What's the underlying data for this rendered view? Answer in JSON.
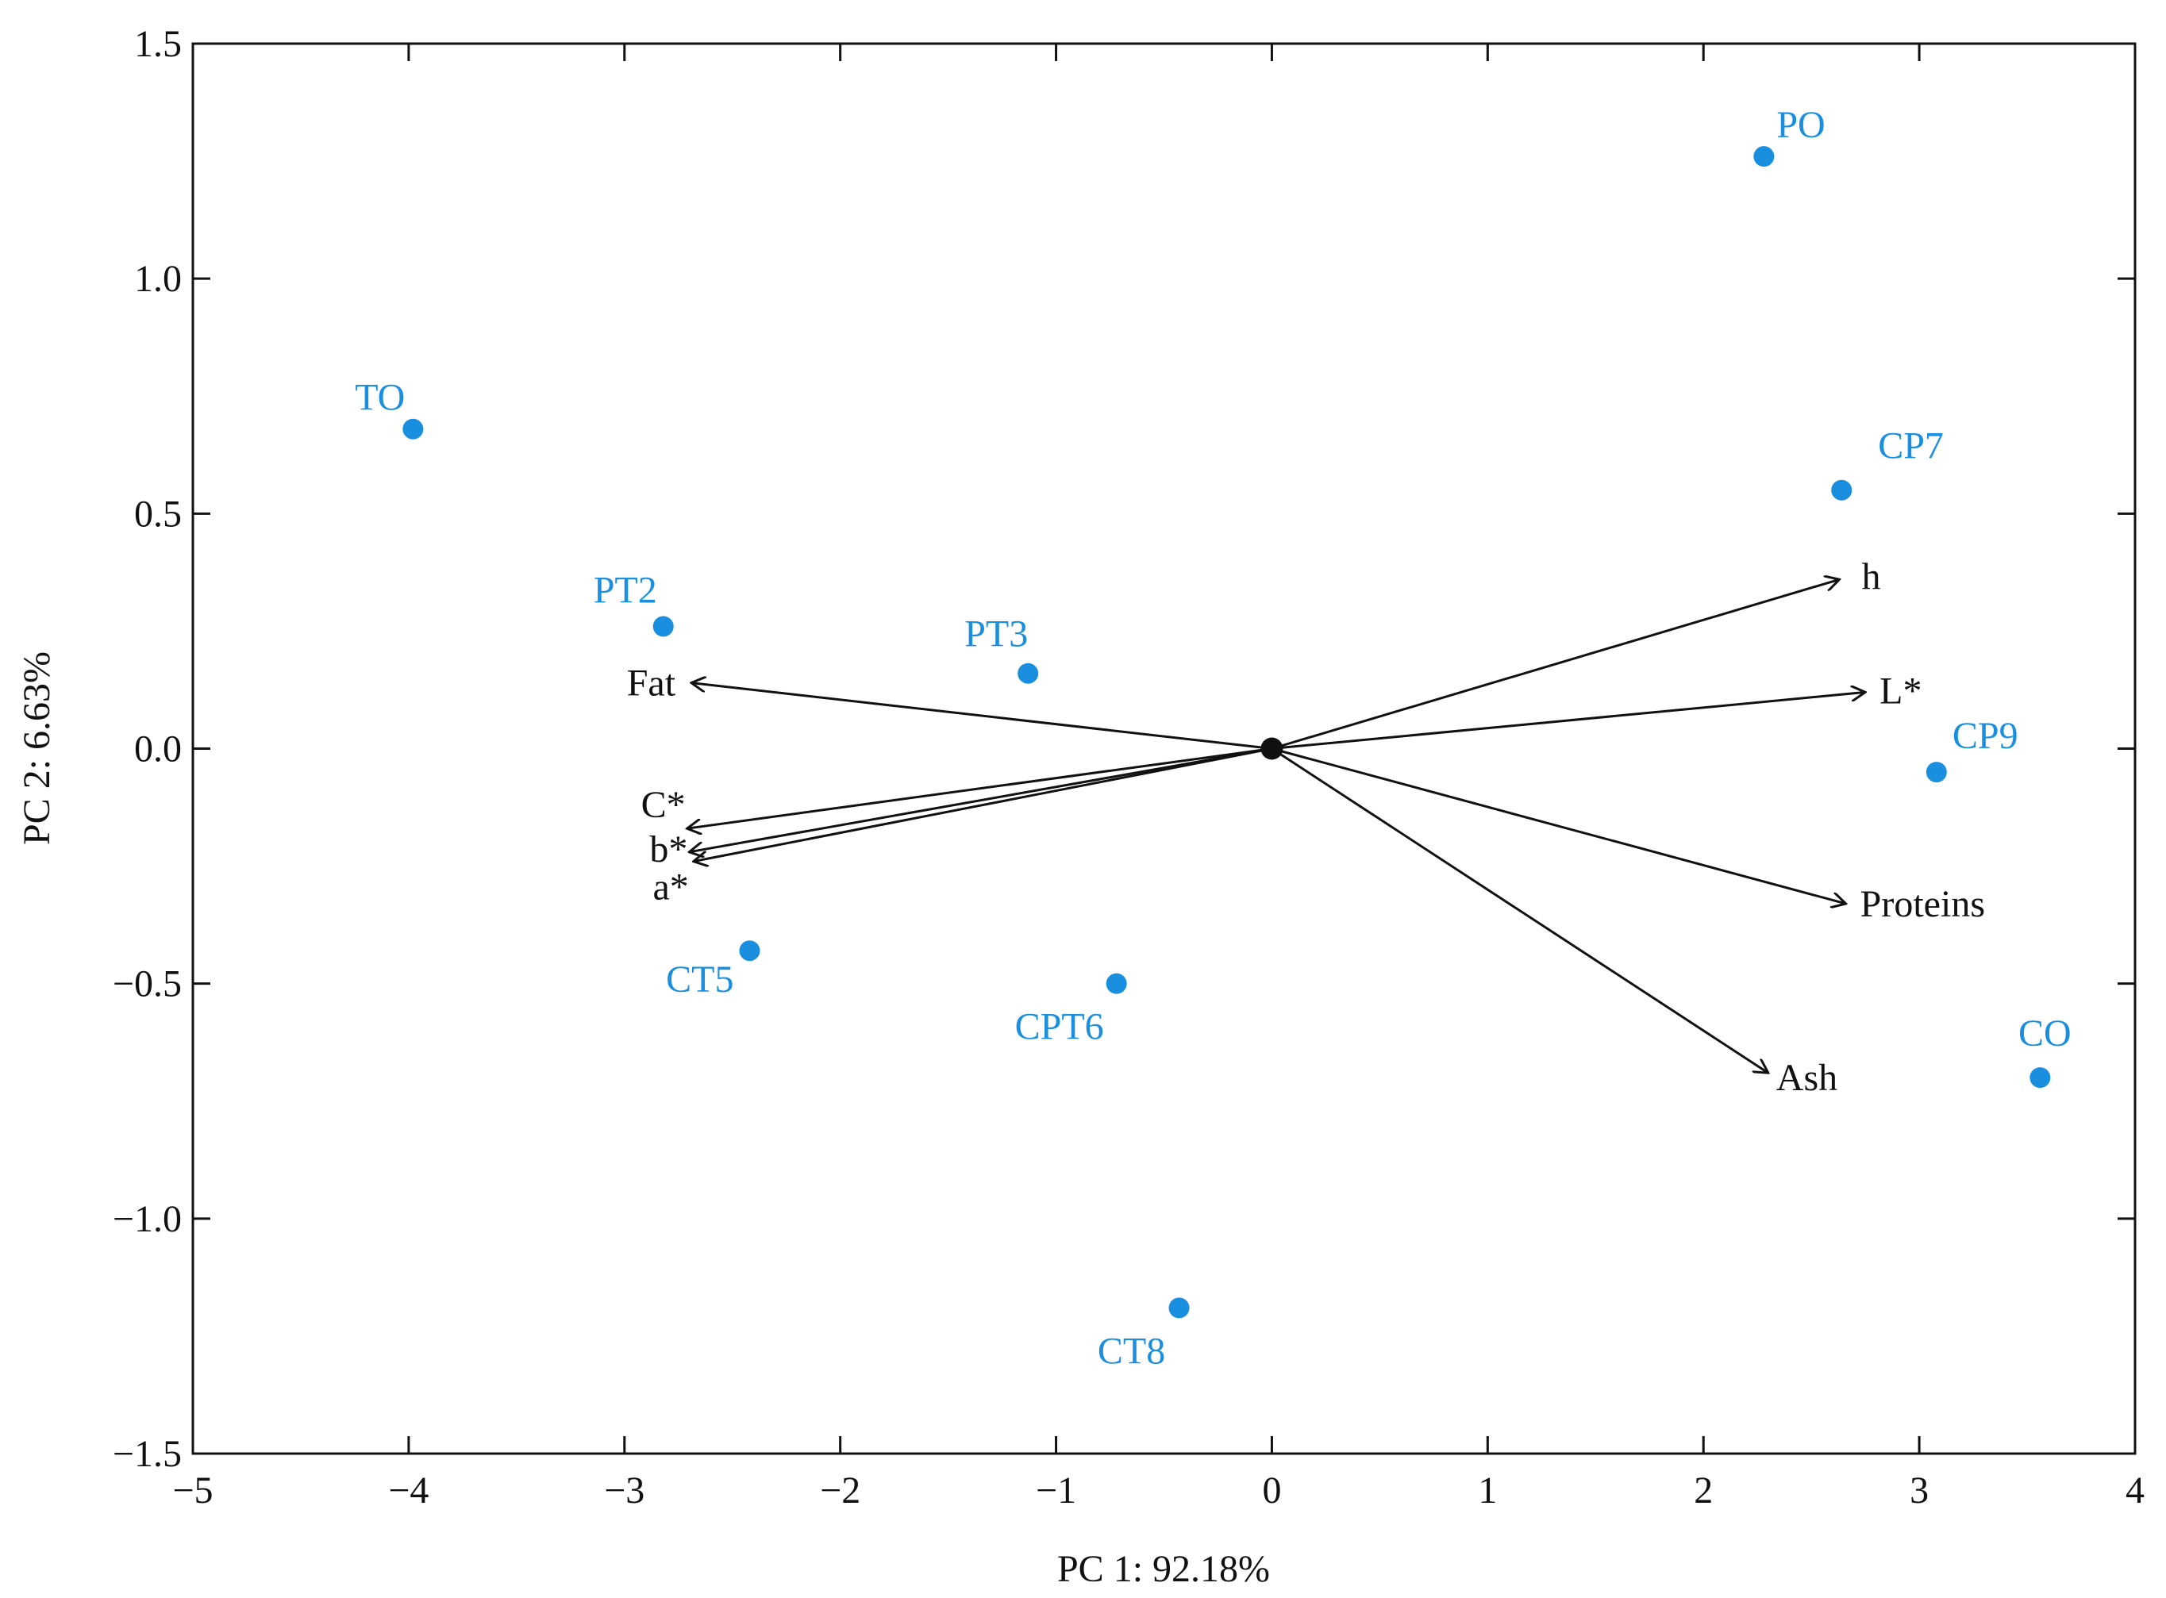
{
  "colors": {
    "points": "#1a8fe0",
    "arrows": "#111111",
    "axes": "#111111",
    "background": "#ffffff"
  },
  "chart_data": {
    "type": "scatter",
    "subtype": "pca-biplot",
    "xlabel": "PC 1: 92.18%",
    "ylabel": "PC 2: 6.63%",
    "xlim": [
      -5,
      4
    ],
    "ylim": [
      -1.5,
      1.5
    ],
    "x_ticks": [
      -5,
      -4,
      -3,
      -2,
      -1,
      0,
      1,
      2,
      3,
      4
    ],
    "x_tick_labels": [
      "−5",
      "−4",
      "−3",
      "−2",
      "−1",
      "0",
      "1",
      "2",
      "3",
      "4"
    ],
    "y_ticks": [
      1.5,
      1.0,
      0.5,
      0.0,
      -0.5,
      -1.0,
      -1.5
    ],
    "y_tick_labels": [
      "1.5",
      "1.0",
      "0.5",
      "0.0",
      "−0.5",
      "−1.0",
      "−1.5"
    ],
    "grid": false,
    "legend": "none",
    "points": [
      {
        "label": "PO",
        "x": 2.28,
        "y": 1.26
      },
      {
        "label": "TO",
        "x": -3.98,
        "y": 0.68
      },
      {
        "label": "CP7",
        "x": 2.64,
        "y": 0.55
      },
      {
        "label": "PT2",
        "x": -2.82,
        "y": 0.26
      },
      {
        "label": "PT3",
        "x": -1.13,
        "y": 0.16
      },
      {
        "label": "CP9",
        "x": 3.08,
        "y": -0.05
      },
      {
        "label": "CT5",
        "x": -2.42,
        "y": -0.43
      },
      {
        "label": "CPT6",
        "x": -0.72,
        "y": -0.5
      },
      {
        "label": "CO",
        "x": 3.56,
        "y": -0.7
      },
      {
        "label": "CT8",
        "x": -0.43,
        "y": -1.19
      }
    ],
    "vectors": [
      {
        "label": "h",
        "x": 2.63,
        "y": 0.36
      },
      {
        "label": "L*",
        "x": 2.75,
        "y": 0.12
      },
      {
        "label": "Proteins",
        "x": 2.66,
        "y": -0.33
      },
      {
        "label": "Ash",
        "x": 2.3,
        "y": -0.69
      },
      {
        "label": "Fat",
        "x": -2.69,
        "y": 0.14
      },
      {
        "label": "C*",
        "x": -2.71,
        "y": -0.17
      },
      {
        "label": "b*",
        "x": -2.7,
        "y": -0.22
      },
      {
        "label": "a*",
        "x": -2.68,
        "y": -0.24
      }
    ]
  }
}
